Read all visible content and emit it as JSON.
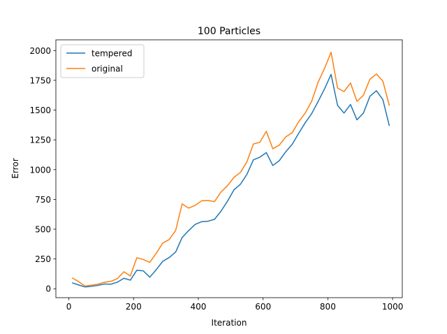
{
  "chart_data": {
    "type": "line",
    "title": "100 Particles",
    "xlabel": "Iteration",
    "ylabel": "Error",
    "xlim": [
      -40,
      1030
    ],
    "ylim": [
      -75,
      2090
    ],
    "grid": false,
    "legend_position": "top-left",
    "x_ticks": [
      0,
      200,
      400,
      600,
      800,
      1000
    ],
    "x_tick_labels": [
      "0",
      "200",
      "400",
      "600",
      "800",
      "1000"
    ],
    "y_ticks": [
      0,
      250,
      500,
      750,
      1000,
      1250,
      1500,
      1750,
      2000
    ],
    "y_tick_labels": [
      "0",
      "250",
      "500",
      "750",
      "1000",
      "1250",
      "1500",
      "1750",
      "2000"
    ],
    "x": [
      10,
      30,
      50,
      70,
      90,
      110,
      130,
      150,
      170,
      190,
      210,
      230,
      250,
      270,
      290,
      310,
      330,
      350,
      370,
      390,
      410,
      430,
      450,
      470,
      490,
      510,
      530,
      550,
      570,
      590,
      610,
      630,
      650,
      670,
      690,
      710,
      730,
      750,
      770,
      790,
      810,
      830,
      850,
      870,
      890,
      910,
      930,
      950,
      970,
      990
    ],
    "series": [
      {
        "name": "tempered",
        "color": "#1f77b4",
        "values": [
          50,
          32,
          15,
          20,
          28,
          40,
          38,
          55,
          88,
          72,
          155,
          150,
          97,
          160,
          230,
          262,
          308,
          430,
          488,
          540,
          563,
          567,
          583,
          651,
          735,
          830,
          877,
          960,
          1082,
          1105,
          1143,
          1035,
          1075,
          1150,
          1213,
          1305,
          1393,
          1470,
          1572,
          1680,
          1800,
          1540,
          1475,
          1547,
          1418,
          1475,
          1616,
          1663,
          1588,
          1367
        ]
      },
      {
        "name": "original",
        "color": "#ff7f0e",
        "values": [
          92,
          60,
          22,
          30,
          38,
          55,
          62,
          85,
          143,
          107,
          260,
          245,
          222,
          298,
          383,
          413,
          489,
          713,
          677,
          700,
          738,
          741,
          732,
          812,
          865,
          935,
          977,
          1065,
          1215,
          1230,
          1322,
          1175,
          1205,
          1275,
          1310,
          1402,
          1475,
          1573,
          1735,
          1851,
          1986,
          1685,
          1655,
          1728,
          1573,
          1625,
          1760,
          1803,
          1743,
          1537
        ]
      }
    ]
  }
}
